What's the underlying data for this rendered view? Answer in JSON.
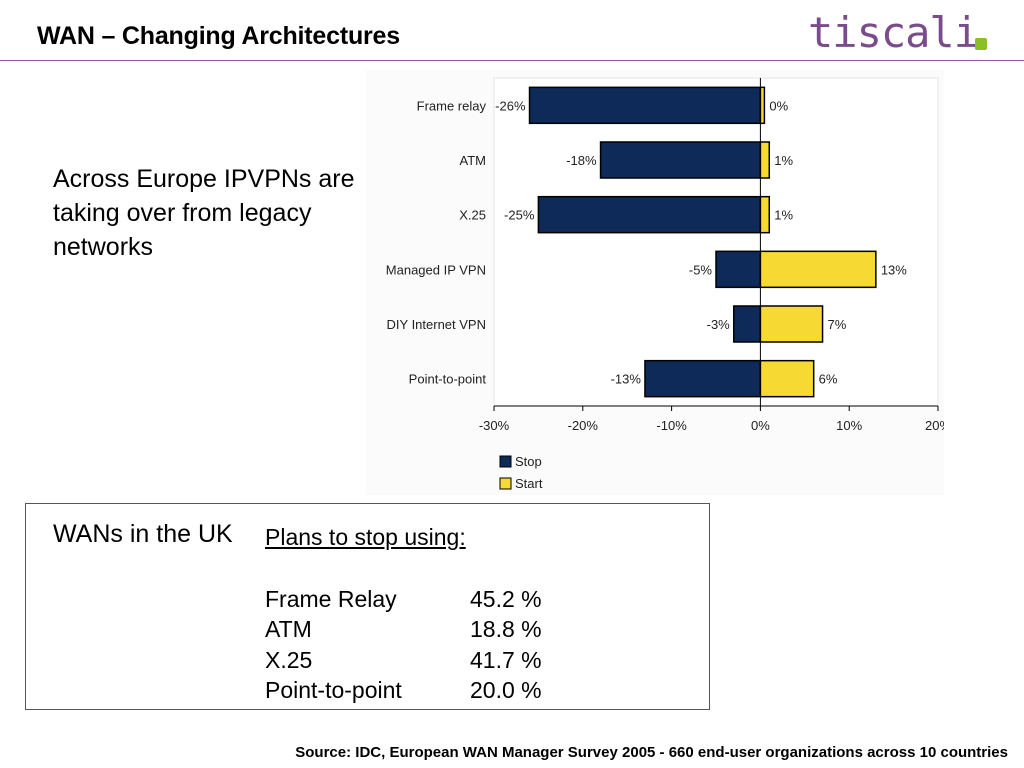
{
  "header": {
    "title": "WAN – Changing Architectures",
    "logo_text": "tiscali"
  },
  "intro_text": "Across Europe IPVPNs are taking over from legacy networks",
  "chart_data": {
    "type": "bar",
    "orientation": "horizontal",
    "stacking": "diverging",
    "categories": [
      "Frame relay",
      "ATM",
      "X.25",
      "Managed IP VPN",
      "DIY Internet VPN",
      "Point-to-point"
    ],
    "series": [
      {
        "name": "Stop",
        "color": "#0d2a59",
        "values": [
          -26,
          -18,
          -25,
          -5,
          -3,
          -13
        ],
        "labels": [
          "-26%",
          "-18%",
          "-25%",
          "-5%",
          "-3%",
          "-13%"
        ]
      },
      {
        "name": "Start",
        "color": "#f7d934",
        "values": [
          0,
          1,
          1,
          13,
          7,
          6
        ],
        "labels": [
          "0%",
          "1%",
          "1%",
          "13%",
          "7%",
          "6%"
        ]
      }
    ],
    "xlim": [
      -30,
      20
    ],
    "xticks": [
      -30,
      -20,
      -10,
      0,
      10,
      20
    ],
    "xtick_labels": [
      "-30%",
      "-20%",
      "-10%",
      "0%",
      "10%",
      "20%"
    ],
    "legend_position": "bottom-left",
    "grid": false
  },
  "uk": {
    "title": "WANs in the UK",
    "heading": "Plans to stop using:",
    "rows": [
      {
        "label": "Frame Relay",
        "value": "45.2 %"
      },
      {
        "label": "ATM",
        "value": "18.8 %"
      },
      {
        "label": "X.25",
        "value": "41.7 %"
      },
      {
        "label": "Point-to-point",
        "value": "20.0 %"
      }
    ]
  },
  "footer": {
    "source": "Source: IDC, European WAN Manager Survey 2005 - 660 end-user organizations across 10 countries"
  }
}
